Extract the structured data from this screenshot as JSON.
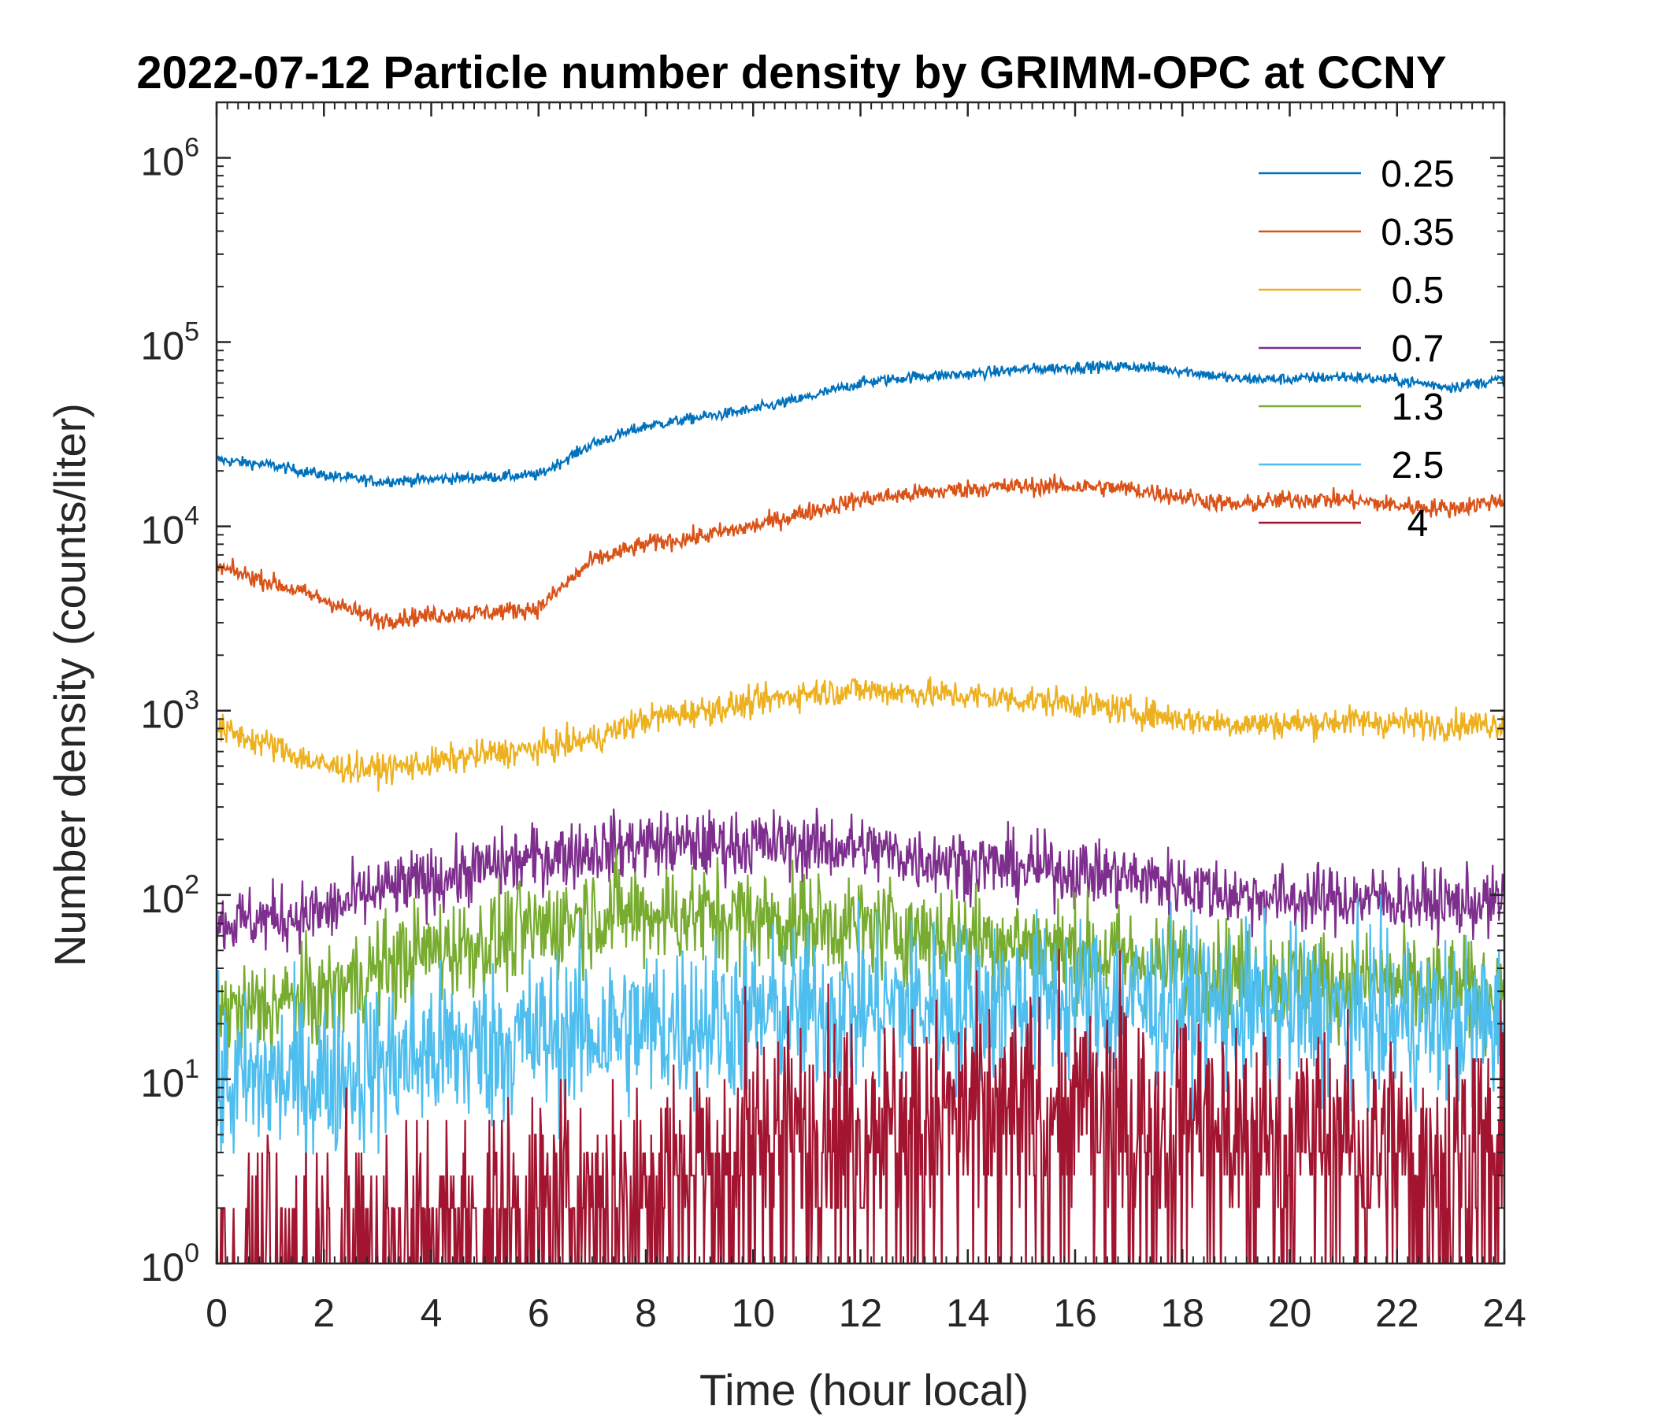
{
  "chart_data": {
    "type": "line",
    "title": "2022-07-12 Particle number density by GRIMM-OPC at CCNY",
    "xlabel": "Time (hour local)",
    "ylabel": "Number density (counts/liter)",
    "xlim": [
      0,
      24
    ],
    "ylim": [
      1,
      2000000
    ],
    "yscale": "log",
    "x_ticks": [
      0,
      2,
      4,
      6,
      8,
      10,
      12,
      14,
      16,
      18,
      20,
      22,
      24
    ],
    "x_tick_labels": [
      "0",
      "2",
      "4",
      "6",
      "8",
      "10",
      "12",
      "14",
      "16",
      "18",
      "20",
      "22",
      "24"
    ],
    "y_ticks": [
      1,
      10,
      100,
      1000,
      10000,
      100000,
      1000000
    ],
    "y_tick_labels": [
      {
        "base": "10",
        "exp": "0"
      },
      {
        "base": "10",
        "exp": "1"
      },
      {
        "base": "10",
        "exp": "2"
      },
      {
        "base": "10",
        "exp": "3"
      },
      {
        "base": "10",
        "exp": "4"
      },
      {
        "base": "10",
        "exp": "5"
      },
      {
        "base": "10",
        "exp": "6"
      }
    ],
    "legend_position": "top-right",
    "grid": false,
    "x": [
      0,
      1,
      2,
      3,
      4,
      5,
      6,
      7,
      8,
      9,
      10,
      11,
      12,
      13,
      14,
      15,
      16,
      17,
      18,
      19,
      20,
      21,
      22,
      23,
      24
    ],
    "series": [
      {
        "name": "0.25",
        "color": "#0072BD",
        "noise": 0.03,
        "spikes": false,
        "values": [
          23000,
          21500,
          19000,
          17500,
          18000,
          18500,
          19000,
          28000,
          35000,
          39000,
          43000,
          50000,
          60000,
          65000,
          67000,
          71000,
          73000,
          74000,
          70000,
          63000,
          63000,
          65000,
          62000,
          57000,
          63000
        ]
      },
      {
        "name": "0.35",
        "color": "#D95319",
        "noise": 0.05,
        "spikes": false,
        "values": [
          6000,
          5000,
          4000,
          3100,
          3300,
          3400,
          3600,
          6500,
          8000,
          8800,
          10000,
          12000,
          14000,
          15000,
          16000,
          16500,
          16500,
          16000,
          14500,
          13000,
          14000,
          14000,
          13000,
          12500,
          14000
        ]
      },
      {
        "name": "0.5",
        "color": "#EDB120",
        "noise": 0.08,
        "spikes": false,
        "values": [
          800,
          650,
          500,
          480,
          520,
          580,
          620,
          700,
          900,
          1000,
          1100,
          1250,
          1300,
          1250,
          1200,
          1150,
          1100,
          1000,
          900,
          850,
          850,
          880,
          860,
          840,
          850
        ]
      },
      {
        "name": "0.7",
        "color": "#7E2F8E",
        "noise": 0.18,
        "spikes": false,
        "values": [
          70,
          75,
          80,
          105,
          120,
          140,
          160,
          175,
          190,
          185,
          190,
          185,
          180,
          160,
          150,
          140,
          135,
          125,
          115,
          100,
          95,
          95,
          95,
          90,
          90
        ]
      },
      {
        "name": "1.3",
        "color": "#77AC30",
        "noise": 0.28,
        "spikes": false,
        "values": [
          22,
          25,
          28,
          40,
          50,
          55,
          65,
          80,
          80,
          78,
          75,
          70,
          68,
          62,
          60,
          55,
          50,
          45,
          40,
          38,
          35,
          33,
          32,
          30,
          30
        ]
      },
      {
        "name": "2.5",
        "color": "#4DBEEE",
        "noise": 0.45,
        "spikes": false,
        "values": [
          9,
          10,
          10,
          12,
          14,
          15,
          17,
          18,
          19,
          21,
          22,
          23,
          24,
          25,
          25,
          26,
          27,
          26,
          25,
          24,
          23,
          22,
          21,
          20,
          20
        ]
      },
      {
        "name": "4",
        "color": "#A2142F",
        "noise": 0.6,
        "spikes": true,
        "values": [
          1.2,
          1.2,
          1.3,
          1.5,
          1.8,
          2,
          2.2,
          2.7,
          3.2,
          4.2,
          5.8,
          6,
          6.3,
          6.5,
          7,
          7.2,
          7.2,
          7,
          6.5,
          6,
          5.5,
          5,
          4.5,
          4.2,
          4
        ]
      }
    ]
  }
}
